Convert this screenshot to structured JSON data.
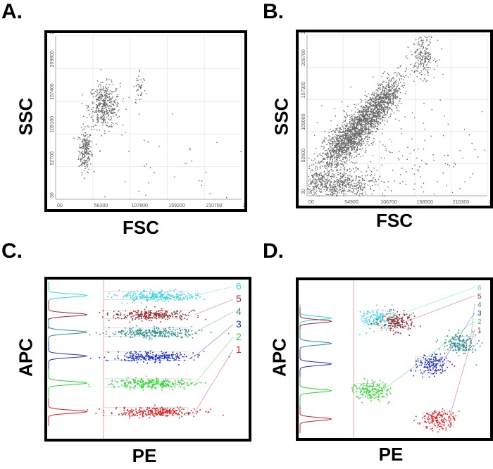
{
  "panels": [
    {
      "letter": "A.",
      "xlabel": "FSC",
      "ylabel": "SSC"
    },
    {
      "letter": "B.",
      "xlabel": "FSC",
      "ylabel": "SSC"
    },
    {
      "letter": "C.",
      "xlabel": "PE",
      "ylabel": "APC"
    },
    {
      "letter": "D.",
      "xlabel": "PE",
      "ylabel": "APC"
    }
  ],
  "chart_data": [
    {
      "type": "scatter",
      "panel": "A",
      "xlabel": "FSC",
      "ylabel": "SSC",
      "xlim": [
        0,
        262000
      ],
      "ylim": [
        0,
        262000
      ],
      "xticks": [
        "00",
        "56300",
        "107800",
        "159200",
        "210700",
        "26"
      ],
      "yticks": [
        "30",
        "52700",
        "105100",
        "157400",
        "209800",
        "26"
      ],
      "color": "#666666",
      "clusters": [
        {
          "cx": 41000,
          "cy": 79000,
          "sx": 4500,
          "sy": 17000,
          "n": 220
        },
        {
          "cx": 68000,
          "cy": 150000,
          "sx": 11000,
          "sy": 18000,
          "n": 420
        },
        {
          "cx": 118000,
          "cy": 180000,
          "sx": 4500,
          "sy": 15000,
          "n": 40
        },
        {
          "cx": 130000,
          "cy": 30000,
          "sx": 60000,
          "sy": 60000,
          "n": 60
        }
      ]
    },
    {
      "type": "scatter",
      "panel": "B",
      "xlabel": "FSC",
      "ylabel": "SSC",
      "xlim": [
        0,
        262000
      ],
      "ylim": [
        0,
        262000
      ],
      "xticks": [
        "00",
        "54900",
        "106700",
        "158500",
        "210300",
        "26"
      ],
      "yticks": [
        "30",
        "52600",
        "105000",
        "157300",
        "209700",
        "26"
      ],
      "color": "#666666",
      "clusters": [
        {
          "cx": 60000,
          "cy": 95000,
          "sx": 14000,
          "sy": 28000,
          "n": 1400,
          "tilt": 1.15
        },
        {
          "cx": 105000,
          "cy": 150000,
          "sx": 11000,
          "sy": 24000,
          "n": 800,
          "tilt": 1.0
        },
        {
          "cx": 168000,
          "cy": 230000,
          "sx": 9000,
          "sy": 18000,
          "n": 220
        },
        {
          "cx": 40000,
          "cy": 18000,
          "sx": 30000,
          "sy": 12000,
          "n": 600
        },
        {
          "cx": 130000,
          "cy": 60000,
          "sx": 80000,
          "sy": 50000,
          "n": 220
        }
      ]
    },
    {
      "type": "scatter",
      "panel": "C",
      "xlabel": "PE",
      "ylabel": "APC",
      "populations": [
        {
          "label": "6",
          "color": "#33d9e8",
          "level": 0.9
        },
        {
          "label": "5",
          "color": "#9b2d2d",
          "level": 0.78
        },
        {
          "label": "4",
          "color": "#2f8f8f",
          "level": 0.67
        },
        {
          "label": "3",
          "color": "#1f2fd6",
          "level": 0.52
        },
        {
          "label": "2",
          "color": "#2fd62f",
          "level": 0.35
        },
        {
          "label": "1",
          "color": "#e02020",
          "level": 0.17
        }
      ]
    },
    {
      "type": "scatter",
      "panel": "D",
      "xlabel": "PE",
      "ylabel": "APC",
      "populations": [
        {
          "label": "6",
          "color": "#33d9e8",
          "px": 0.42,
          "level": 0.76
        },
        {
          "label": "5",
          "color": "#9b2d2d",
          "px": 0.51,
          "level": 0.74
        },
        {
          "label": "4",
          "color": "#2f8f8f",
          "px": 0.84,
          "level": 0.6
        },
        {
          "label": "3",
          "color": "#1f2fd6",
          "px": 0.69,
          "level": 0.47
        },
        {
          "label": "2",
          "color": "#2fd62f",
          "px": 0.38,
          "level": 0.3
        },
        {
          "label": "1",
          "color": "#e02020",
          "px": 0.73,
          "level": 0.12
        }
      ]
    }
  ]
}
